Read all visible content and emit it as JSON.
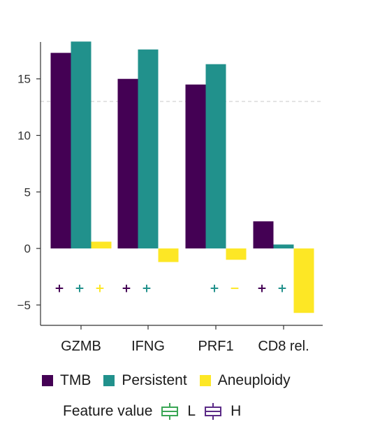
{
  "chart_data": {
    "type": "bar",
    "categories": [
      "GZMB",
      "IFNG",
      "PRF1",
      "CD8 rel."
    ],
    "series": [
      {
        "name": "TMB",
        "color": "#440154",
        "values": [
          17.3,
          15.0,
          14.5,
          2.4
        ]
      },
      {
        "name": "Persistent",
        "color": "#21918c",
        "values": [
          18.3,
          17.6,
          16.3,
          0.35
        ]
      },
      {
        "name": "Aneuploidy",
        "color": "#fde725",
        "values": [
          0.6,
          -1.2,
          -1.0,
          -5.7
        ]
      }
    ],
    "feature_signs": [
      [
        "+",
        "+",
        "+"
      ],
      [
        "+",
        "+",
        ""
      ],
      [
        "",
        "+",
        "−"
      ],
      [
        "+",
        "+",
        "−"
      ]
    ],
    "y_ticks": [
      "−5",
      "0",
      "5",
      "10",
      "15"
    ],
    "ylim": [
      -6.8,
      19.5
    ],
    "threshold": 13,
    "threshold_style": "dashed",
    "legend": {
      "position": "bottom"
    },
    "feature_legend": {
      "label": "Feature value",
      "items": [
        {
          "label": "L",
          "color": "#3aa655"
        },
        {
          "label": "H",
          "color": "#5b2a86"
        }
      ]
    }
  }
}
